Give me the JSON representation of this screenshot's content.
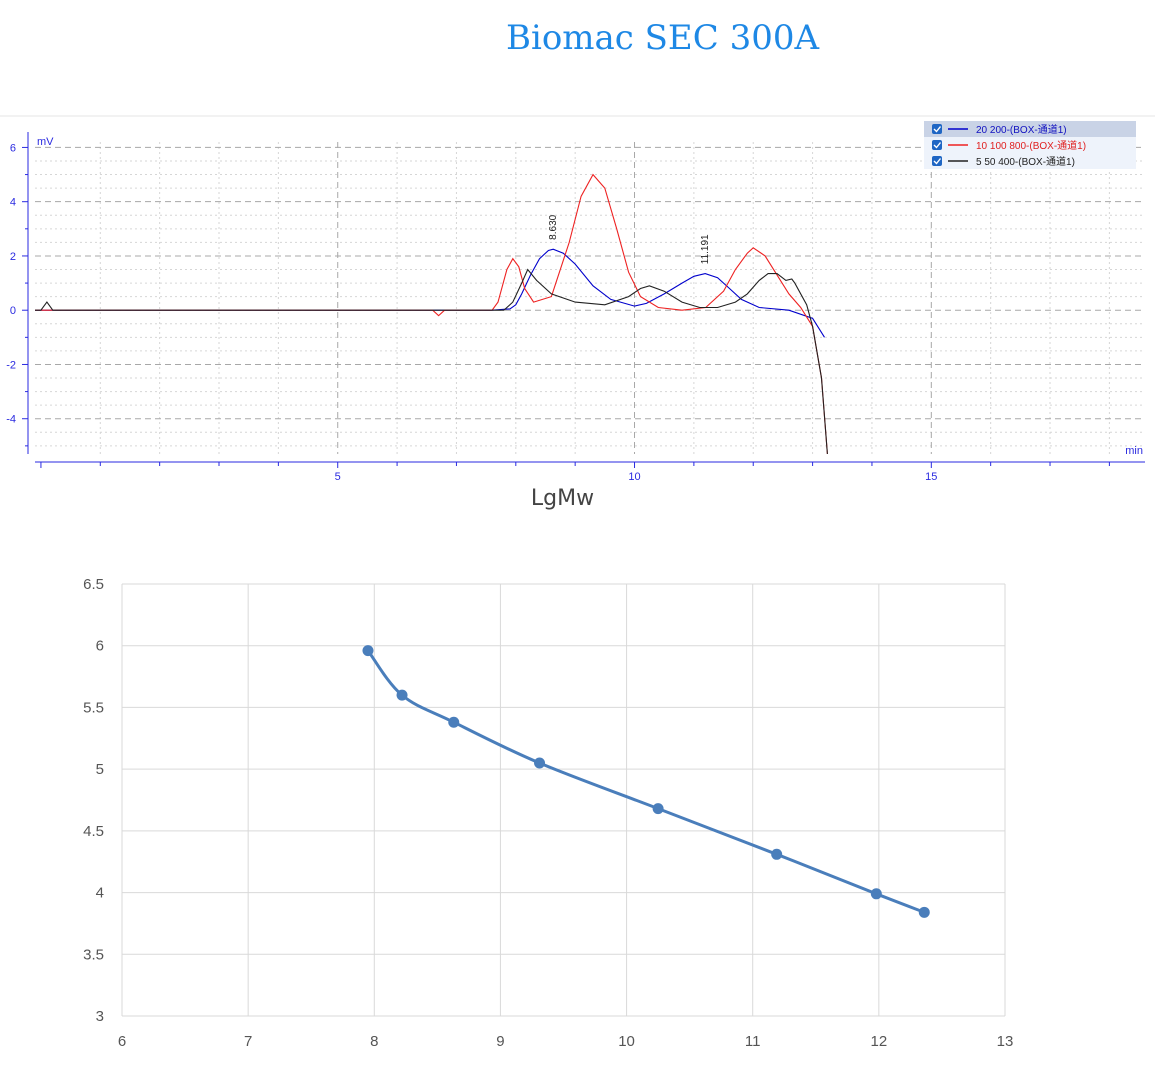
{
  "title": "Biomac SEC 300A",
  "chart_data": [
    {
      "type": "line",
      "ylabel": "mV",
      "xlabel": "min",
      "xlim": [
        -0.1,
        18.6
      ],
      "ylim": [
        -5.3,
        6.2
      ],
      "xticks": [
        5,
        10,
        15
      ],
      "yticks": [
        -4,
        -2,
        0,
        2,
        4,
        6
      ],
      "grid": true,
      "legend_position": "top-right",
      "annotations": [
        {
          "label": "8.630",
          "x": 8.63,
          "y": 2.3
        },
        {
          "label": "11.191",
          "x": 11.19,
          "y": 1.4
        }
      ],
      "series": [
        {
          "name": "20 200-(BOX-通道1)",
          "color": "#0000cc",
          "x": [
            -0.1,
            7.6,
            7.9,
            8.0,
            8.1,
            8.25,
            8.4,
            8.55,
            8.63,
            8.8,
            9.0,
            9.3,
            9.6,
            10.0,
            10.2,
            10.5,
            10.8,
            11.0,
            11.191,
            11.4,
            11.6,
            11.8,
            12.1,
            12.6,
            13.0,
            13.2
          ],
          "y": [
            0,
            0,
            0.05,
            0.2,
            0.6,
            1.3,
            1.9,
            2.2,
            2.25,
            2.1,
            1.7,
            0.9,
            0.4,
            0.15,
            0.25,
            0.6,
            1.0,
            1.25,
            1.35,
            1.2,
            0.8,
            0.4,
            0.1,
            0,
            -0.3,
            -1.0
          ]
        },
        {
          "name": "10 100 800-(BOX-通道1)",
          "color": "#ee2222",
          "x": [
            -0.1,
            6.6,
            6.7,
            6.8,
            7.6,
            7.7,
            7.85,
            7.95,
            8.05,
            8.15,
            8.3,
            8.6,
            8.9,
            9.1,
            9.3,
            9.5,
            9.7,
            9.9,
            10.1,
            10.4,
            10.8,
            11.2,
            11.5,
            11.7,
            11.9,
            12.0,
            12.2,
            12.4,
            12.6,
            12.8,
            13.0,
            13.15,
            13.25
          ],
          "y": [
            0,
            0,
            -0.2,
            0,
            0,
            0.3,
            1.5,
            1.9,
            1.6,
            0.8,
            0.3,
            0.5,
            2.5,
            4.2,
            5.0,
            4.5,
            3.0,
            1.4,
            0.5,
            0.1,
            0,
            0.1,
            0.7,
            1.5,
            2.1,
            2.3,
            2.0,
            1.3,
            0.6,
            0.1,
            -0.6,
            -2.5,
            -5.3
          ]
        },
        {
          "name": "5 50 400-(BOX-通道1)",
          "color": "#222222",
          "x": [
            -0.1,
            0.0,
            0.1,
            0.2,
            7.8,
            7.95,
            8.1,
            8.2,
            8.35,
            8.6,
            9.0,
            9.5,
            9.9,
            10.1,
            10.25,
            10.5,
            10.8,
            11.1,
            11.4,
            11.7,
            11.9,
            12.1,
            12.25,
            12.4,
            12.55,
            12.65,
            12.7,
            12.9,
            13.0,
            13.15,
            13.25
          ],
          "y": [
            0,
            0,
            0.3,
            0,
            0,
            0.3,
            1.0,
            1.5,
            1.1,
            0.6,
            0.3,
            0.2,
            0.5,
            0.8,
            0.9,
            0.7,
            0.3,
            0.1,
            0.1,
            0.3,
            0.6,
            1.1,
            1.35,
            1.35,
            1.1,
            1.15,
            1.0,
            0.2,
            -0.6,
            -2.5,
            -5.3
          ]
        }
      ]
    },
    {
      "type": "line",
      "title": "LgMw",
      "xlim": [
        6,
        13
      ],
      "ylim": [
        3,
        6.5
      ],
      "xticks": [
        6,
        7,
        8,
        9,
        10,
        11,
        12,
        13
      ],
      "yticks": [
        3,
        3.5,
        4,
        4.5,
        5,
        5.5,
        6,
        6.5
      ],
      "grid": true,
      "series": [
        {
          "color": "#4a7ebb",
          "x": [
            7.95,
            8.22,
            8.63,
            9.31,
            10.25,
            11.19,
            11.98,
            12.36
          ],
          "y": [
            5.96,
            5.6,
            5.38,
            5.05,
            4.68,
            4.31,
            3.99,
            3.84
          ]
        }
      ]
    }
  ]
}
